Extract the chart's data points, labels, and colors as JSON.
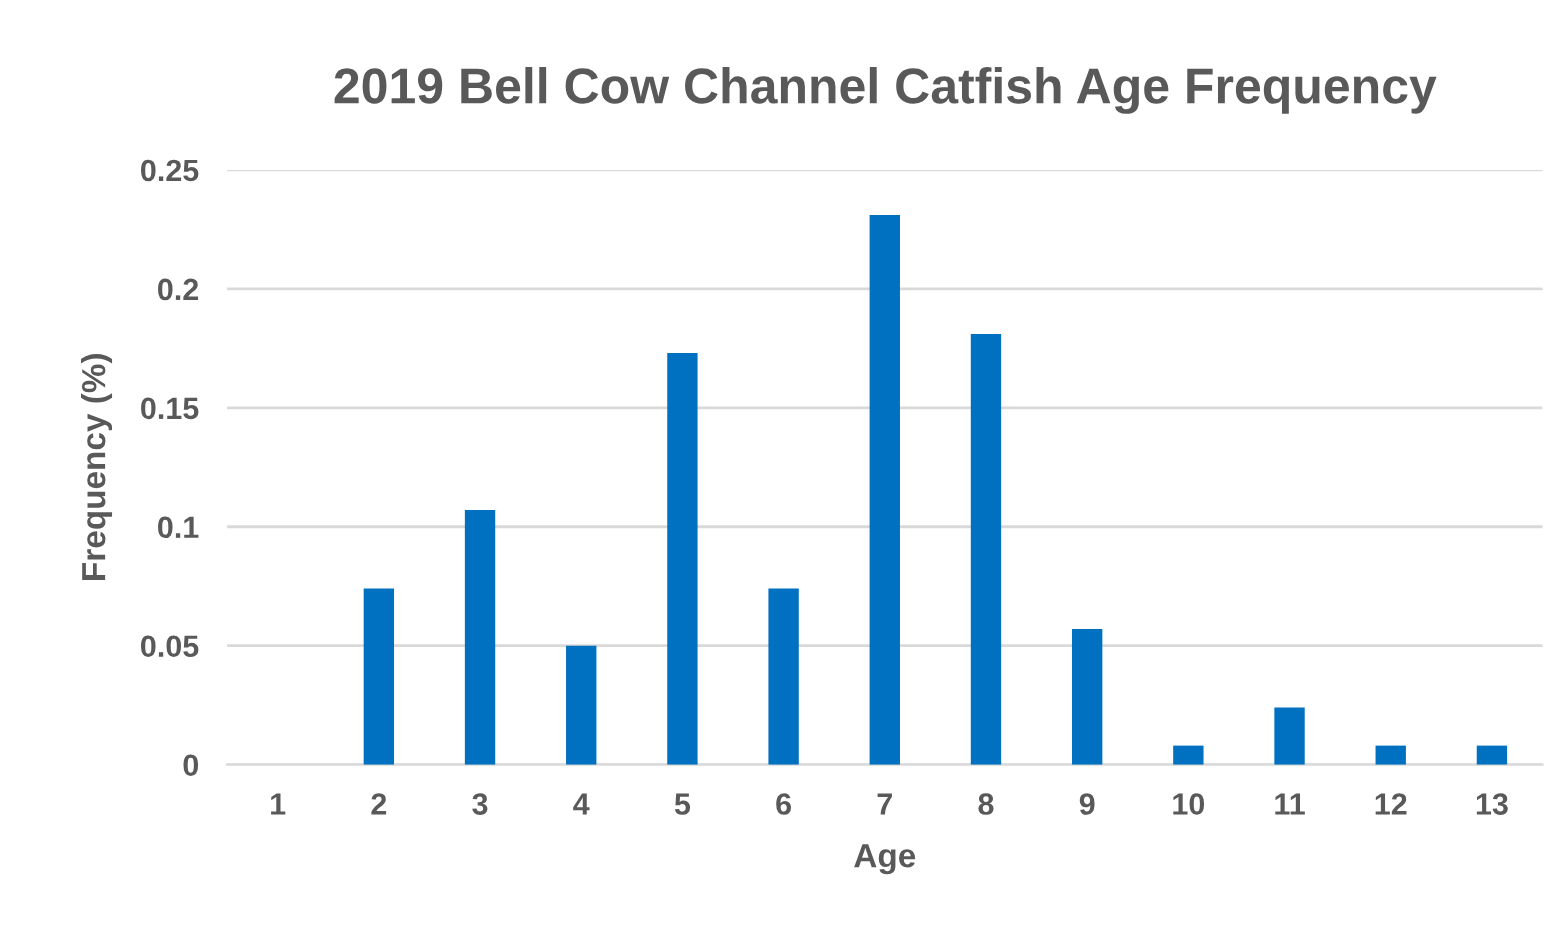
{
  "chart_data": {
    "type": "bar",
    "title": "2019 Bell Cow Channel Catfish Age Frequency",
    "xlabel": "Age",
    "ylabel": "Frequency (%)",
    "categories": [
      "1",
      "2",
      "3",
      "4",
      "5",
      "6",
      "7",
      "8",
      "9",
      "10",
      "11",
      "12",
      "13"
    ],
    "values": [
      0,
      0.074,
      0.107,
      0.05,
      0.173,
      0.074,
      0.231,
      0.181,
      0.057,
      0.008,
      0.024,
      0.008,
      0.008
    ],
    "color": "#0070c0",
    "ylim": [
      0,
      0.25
    ],
    "yticks": [
      0,
      0.05,
      0.1,
      0.15,
      0.2,
      0.25
    ],
    "grid": "y"
  }
}
